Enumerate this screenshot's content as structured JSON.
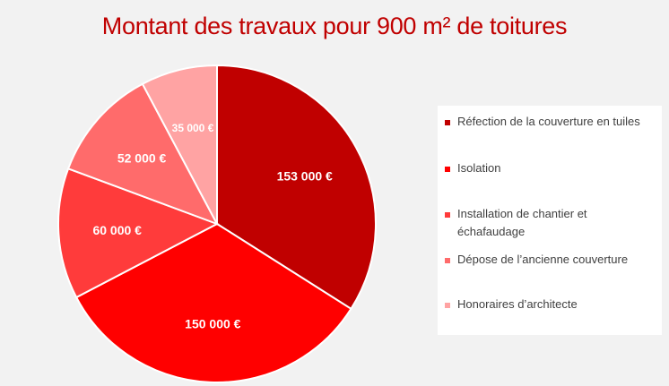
{
  "chart_data": {
    "type": "pie",
    "title": "Montant des travaux pour 900 m² de toitures",
    "categories": [
      "Réfection de la couverture en tuiles",
      "Isolation",
      "Installation de chantier et échafaudage",
      "Dépose de l’ancienne couverture",
      "Honoraires d’architecte"
    ],
    "values": [
      153000,
      150000,
      60000,
      52000,
      35000
    ],
    "data_labels": [
      "153 000 €",
      "150 000 €",
      "60 000 €",
      "52 000 €",
      "35 000 €"
    ],
    "colors": [
      "#c00000",
      "#ff0000",
      "#ff3b3b",
      "#ff6b6b",
      "#ffa3a3"
    ],
    "legend_position": "right"
  }
}
